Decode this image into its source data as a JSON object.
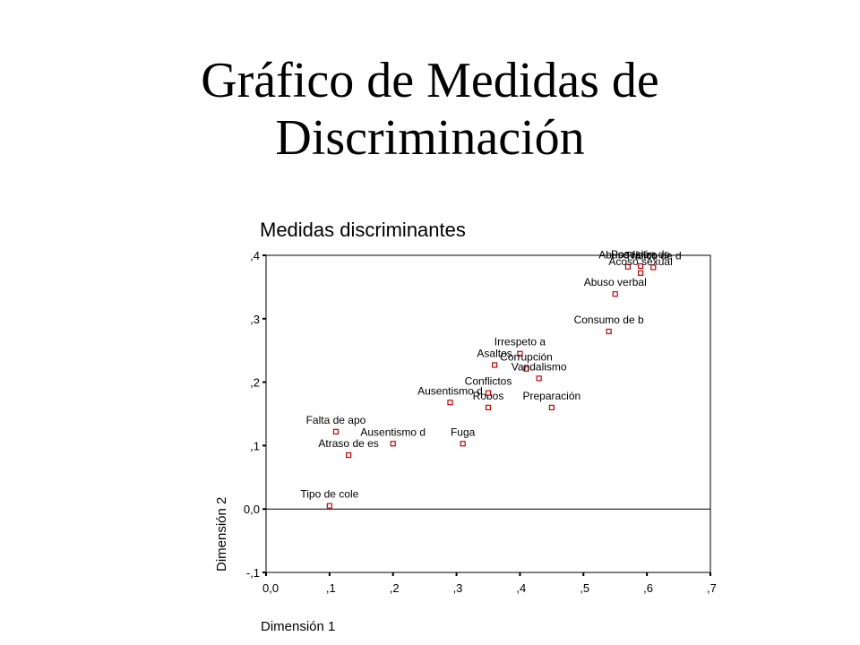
{
  "slide": {
    "title_line1": "Gráfico de Medidas de",
    "title_line2": "Discriminación"
  },
  "chart_data": {
    "type": "scatter",
    "title": "Medidas discriminantes",
    "xlabel": "Dimensión 1",
    "ylabel": "Dimensión 2",
    "xlim": [
      0.0,
      0.7
    ],
    "ylim": [
      -0.1,
      0.4
    ],
    "x_ticks": [
      0.0,
      0.1,
      0.2,
      0.3,
      0.4,
      0.5,
      0.6,
      0.7
    ],
    "x_tick_labels": [
      "0,0",
      ",1",
      ",2",
      ",3",
      ",4",
      ",5",
      ",6",
      ",7"
    ],
    "y_ticks": [
      -0.1,
      0.0,
      0.1,
      0.2,
      0.3,
      0.4
    ],
    "y_tick_labels": [
      "-,1",
      "0,0",
      ",1",
      ",2",
      ",3",
      ",4"
    ],
    "reference_line_y": 0.0,
    "grid": false,
    "marker_color": "#cc0000",
    "points": [
      {
        "label": "Tipo de cole",
        "x": 0.1,
        "y": 0.005
      },
      {
        "label": "Atraso de es",
        "x": 0.13,
        "y": 0.085
      },
      {
        "label": "Falta de apo",
        "x": 0.11,
        "y": 0.122
      },
      {
        "label": "Ausentismo d",
        "x": 0.2,
        "y": 0.103
      },
      {
        "label": "Ausentismo d",
        "x": 0.29,
        "y": 0.168
      },
      {
        "label": "Fuga",
        "x": 0.31,
        "y": 0.103
      },
      {
        "label": "Robos",
        "x": 0.35,
        "y": 0.16
      },
      {
        "label": "Conflictos",
        "x": 0.35,
        "y": 0.183
      },
      {
        "label": "Asaltos",
        "x": 0.36,
        "y": 0.227
      },
      {
        "label": "Irrespeto a",
        "x": 0.4,
        "y": 0.245
      },
      {
        "label": "Corrupción",
        "x": 0.41,
        "y": 0.221
      },
      {
        "label": "Vandalismo",
        "x": 0.43,
        "y": 0.206
      },
      {
        "label": "Preparación",
        "x": 0.45,
        "y": 0.16
      },
      {
        "label": "Consumo de b",
        "x": 0.54,
        "y": 0.28
      },
      {
        "label": "Abuso verbal",
        "x": 0.55,
        "y": 0.339
      },
      {
        "label": "Abuso físico",
        "x": 0.57,
        "y": 0.382
      },
      {
        "label": "Posesión de",
        "x": 0.59,
        "y": 0.383
      },
      {
        "label": "Tráfico de d",
        "x": 0.61,
        "y": 0.381
      },
      {
        "label": "Acoso sexual",
        "x": 0.59,
        "y": 0.372
      }
    ]
  }
}
